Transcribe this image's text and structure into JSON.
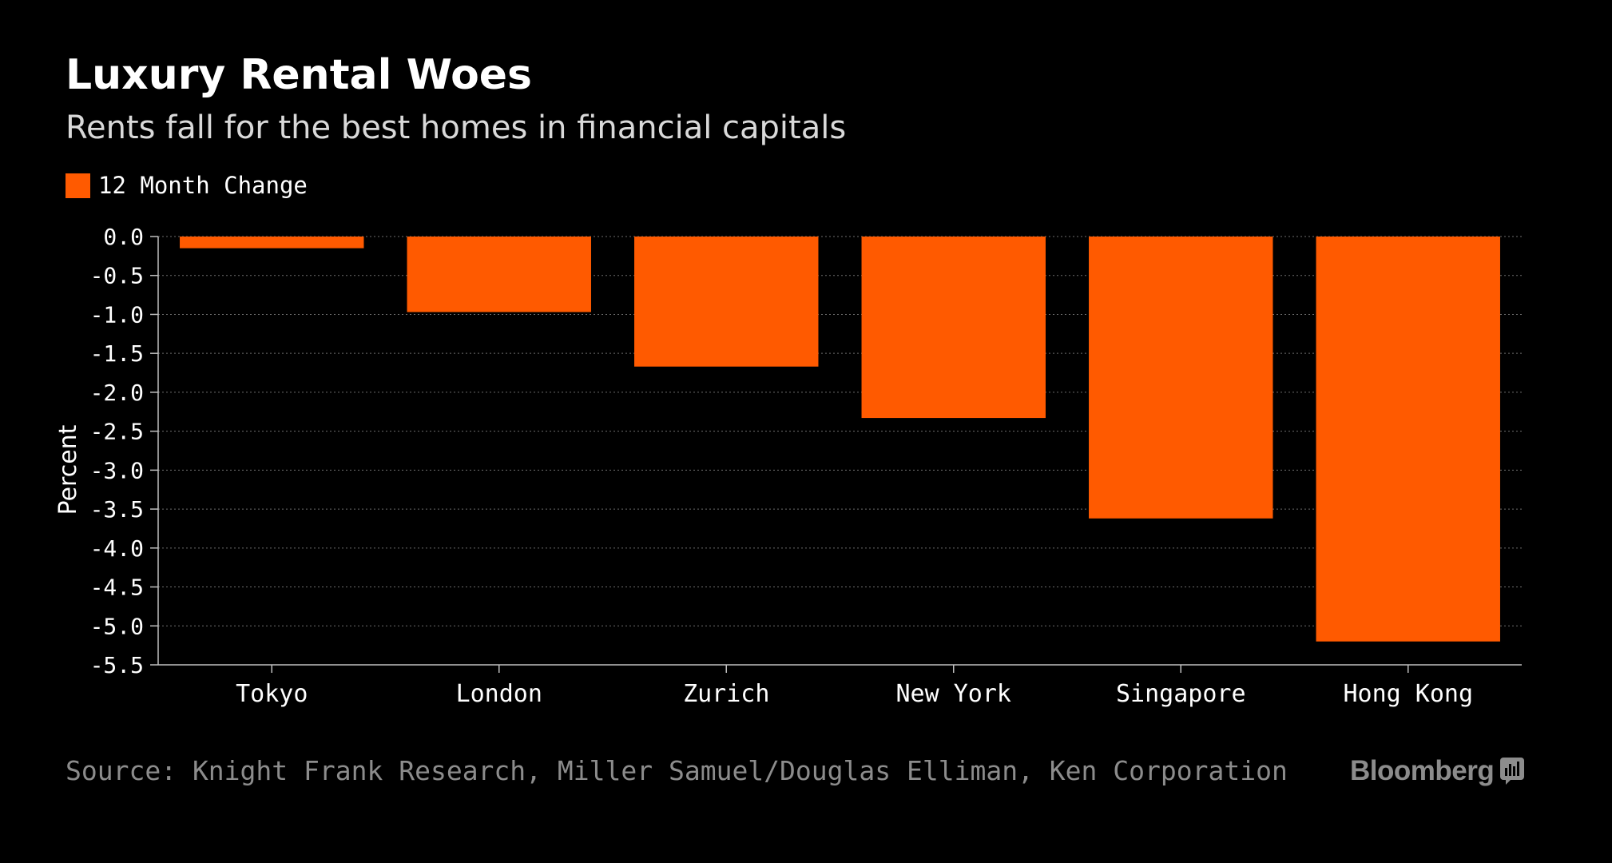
{
  "header": {
    "title": "Luxury Rental Woes",
    "subtitle": "Rents fall for the best homes in financial capitals"
  },
  "legend": {
    "label": "12 Month Change",
    "color": "#ff5a00"
  },
  "chart_data": {
    "type": "bar",
    "title": "Luxury Rental Woes",
    "subtitle": "Rents fall for the best homes in financial capitals",
    "categories": [
      "Tokyo",
      "London",
      "Zurich",
      "New York",
      "Singapore",
      "Hong Kong"
    ],
    "series": [
      {
        "name": "12 Month Change",
        "values": [
          -0.15,
          -0.97,
          -1.67,
          -2.33,
          -3.62,
          -5.2
        ],
        "color": "#ff5a00"
      }
    ],
    "ylabel": "Percent",
    "xlabel": "",
    "ylim": [
      -5.5,
      0
    ],
    "yticks": [
      0.0,
      -0.5,
      -1.0,
      -1.5,
      -2.0,
      -2.5,
      -3.0,
      -3.5,
      -4.0,
      -4.5,
      -5.0,
      -5.5
    ],
    "ytick_labels": [
      "0.0",
      "-0.5",
      "-1.0",
      "-1.5",
      "-2.0",
      "-2.5",
      "-3.0",
      "-3.5",
      "-4.0",
      "-4.5",
      "-5.0",
      "-5.5"
    ],
    "grid": true,
    "legend_position": "top-left"
  },
  "footer": {
    "source": "Source: Knight Frank Research, Miller Samuel/Douglas Elliman, Ken Corporation",
    "brand": "Bloomberg"
  }
}
